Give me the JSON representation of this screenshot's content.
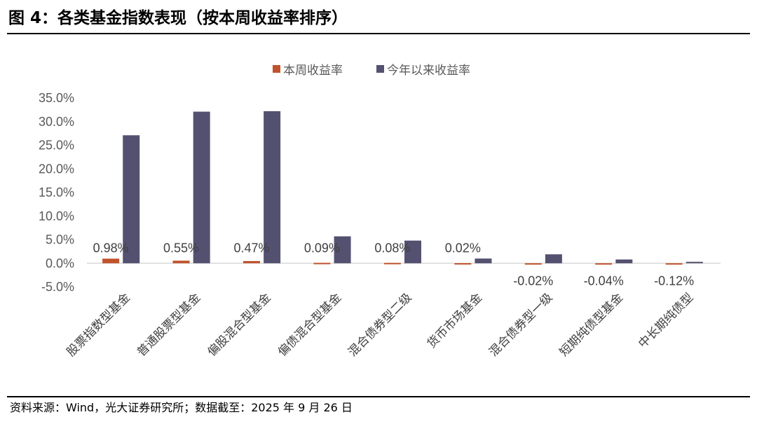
{
  "title": "图 4：各类基金指数表现（按本周收益率排序）",
  "source": "资料来源：Wind，光大证券研究所；数据截至：2025 年 9 月 26 日",
  "colors": {
    "series1": "#C0532D",
    "series2": "#545170",
    "axis": "#D9D9D9"
  },
  "chart_data": {
    "type": "bar",
    "categories": [
      "股票指数型基金",
      "普通股票型基金",
      "偏股混合型基金",
      "偏债混合型基金",
      "混合债券型二级",
      "货币市场基金",
      "混合债券型一级",
      "短期纯债型基金",
      "中长期纯债型"
    ],
    "series": [
      {
        "name": "本周收益率",
        "values": [
          0.98,
          0.55,
          0.47,
          0.09,
          0.08,
          0.02,
          -0.02,
          -0.04,
          -0.12
        ]
      },
      {
        "name": "今年以来收益率",
        "values": [
          27.1,
          32.1,
          32.2,
          5.7,
          4.8,
          1.0,
          1.9,
          0.8,
          0.3
        ]
      }
    ],
    "data_labels": [
      "0.98%",
      "0.55%",
      "0.47%",
      "0.09%",
      "0.08%",
      "0.02%",
      "-0.02%",
      "-0.04%",
      "-0.12%"
    ],
    "y_ticks": [
      "35.0%",
      "30.0%",
      "25.0%",
      "20.0%",
      "15.0%",
      "10.0%",
      "5.0%",
      "0.0%",
      "-5.0%"
    ],
    "y_tick_values": [
      35,
      30,
      25,
      20,
      15,
      10,
      5,
      0,
      -5
    ],
    "ylim": [
      -5,
      35
    ],
    "unit": "%",
    "legend": "top-center",
    "grid": false
  }
}
